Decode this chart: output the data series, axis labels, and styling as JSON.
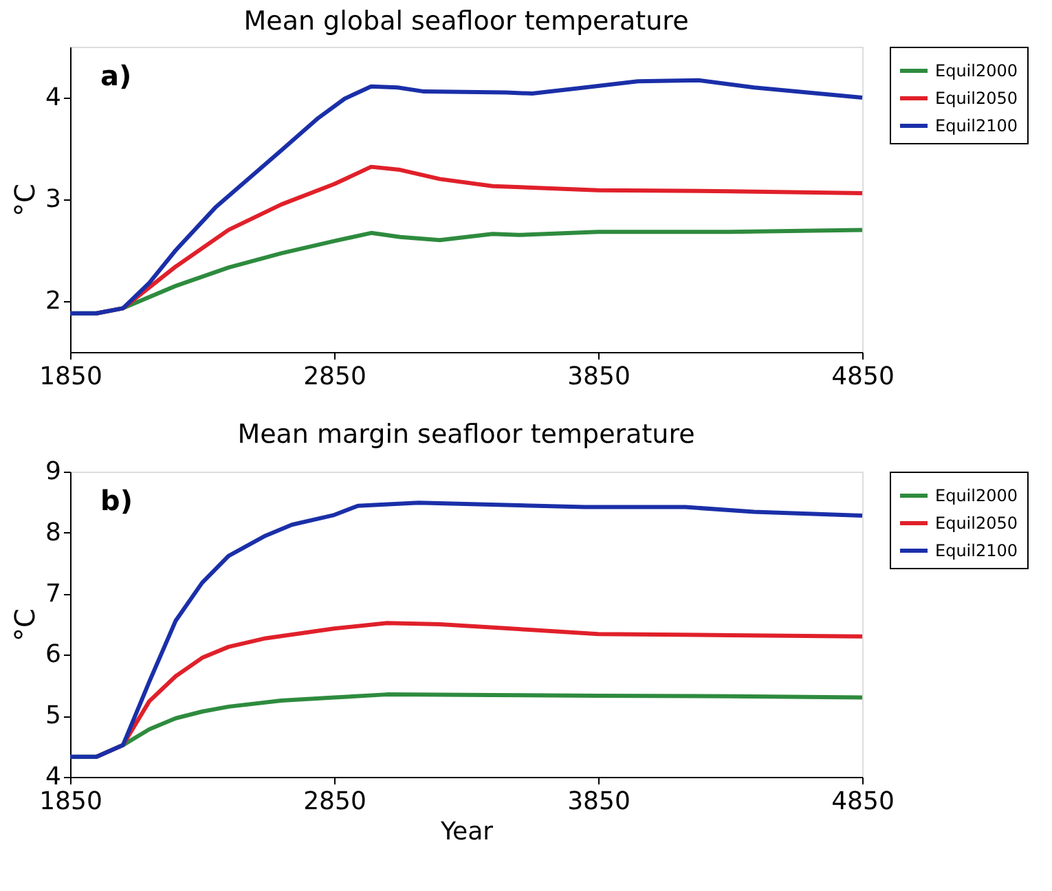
{
  "chart_data": [
    {
      "type": "line",
      "title": "Mean global seafloor temperature",
      "ylabel": "°C",
      "annotations": [
        "a)"
      ],
      "xlim": [
        1850,
        4850
      ],
      "xticks": [
        1850,
        2850,
        3850,
        4850
      ],
      "ylim": [
        1.5,
        4.5
      ],
      "yticks": [
        2,
        3,
        4
      ],
      "grid": false,
      "legend": "top right",
      "line_style": "solid",
      "marker": "none",
      "series": [
        {
          "name": "Equil2000",
          "color": "#2e8b3e",
          "x": [
            1850,
            1950,
            2050,
            2250,
            2450,
            2650,
            2850,
            2990,
            3100,
            3250,
            3450,
            3550,
            3850,
            4350,
            4850
          ],
          "values": [
            1.88,
            1.88,
            1.93,
            2.15,
            2.33,
            2.47,
            2.59,
            2.67,
            2.63,
            2.6,
            2.66,
            2.65,
            2.68,
            2.68,
            2.7
          ]
        },
        {
          "name": "Equil2050",
          "color": "#e0202a",
          "x": [
            1950,
            2050,
            2250,
            2450,
            2650,
            2850,
            2990,
            3100,
            3250,
            3450,
            3850,
            4350,
            4850
          ],
          "values": [
            1.88,
            1.93,
            2.34,
            2.7,
            2.95,
            3.15,
            3.32,
            3.29,
            3.2,
            3.13,
            3.09,
            3.08,
            3.06
          ]
        },
        {
          "name": "Equil2100",
          "color": "#1a2fa8",
          "x": [
            1850,
            1950,
            2050,
            2150,
            2250,
            2400,
            2640,
            2790,
            2890,
            2990,
            3090,
            3190,
            3500,
            3600,
            3800,
            4000,
            4230,
            4440,
            4850
          ],
          "values": [
            1.88,
            1.88,
            1.93,
            2.18,
            2.5,
            2.92,
            3.46,
            3.8,
            3.99,
            4.11,
            4.1,
            4.06,
            4.05,
            4.04,
            4.1,
            4.16,
            4.17,
            4.1,
            4.0
          ]
        }
      ]
    },
    {
      "type": "line",
      "title": "Mean margin seafloor temperature",
      "xlabel": "Year",
      "ylabel": "°C",
      "annotations": [
        "b)"
      ],
      "xlim": [
        1850,
        4850
      ],
      "xticks": [
        1850,
        2850,
        3850,
        4850
      ],
      "ylim": [
        4,
        9
      ],
      "yticks": [
        4,
        5,
        6,
        7,
        8,
        9
      ],
      "grid": false,
      "legend": "top right",
      "line_style": "solid",
      "marker": "none",
      "series": [
        {
          "name": "Equil2000",
          "color": "#2e8b3e",
          "x": [
            1850,
            1950,
            2050,
            2150,
            2250,
            2350,
            2450,
            2650,
            2850,
            3050,
            3450,
            3850,
            4350,
            4850
          ],
          "values": [
            4.33,
            4.33,
            4.52,
            4.78,
            4.96,
            5.07,
            5.15,
            5.25,
            5.3,
            5.35,
            5.34,
            5.33,
            5.32,
            5.3
          ]
        },
        {
          "name": "Equil2050",
          "color": "#e0202a",
          "x": [
            1950,
            2050,
            2150,
            2250,
            2350,
            2450,
            2590,
            2850,
            3050,
            3250,
            3550,
            3850,
            4350,
            4850
          ],
          "values": [
            4.33,
            4.52,
            5.24,
            5.65,
            5.95,
            6.13,
            6.27,
            6.43,
            6.52,
            6.5,
            6.42,
            6.34,
            6.32,
            6.3
          ]
        },
        {
          "name": "Equil2100",
          "color": "#1a2fa8",
          "x": [
            1850,
            1950,
            2050,
            2150,
            2250,
            2350,
            2450,
            2590,
            2690,
            2850,
            2940,
            3170,
            3800,
            4180,
            4440,
            4850
          ],
          "values": [
            4.33,
            4.33,
            4.52,
            5.56,
            6.56,
            7.18,
            7.62,
            7.95,
            8.13,
            8.29,
            8.44,
            8.49,
            8.42,
            8.42,
            8.34,
            8.28
          ]
        }
      ]
    }
  ]
}
